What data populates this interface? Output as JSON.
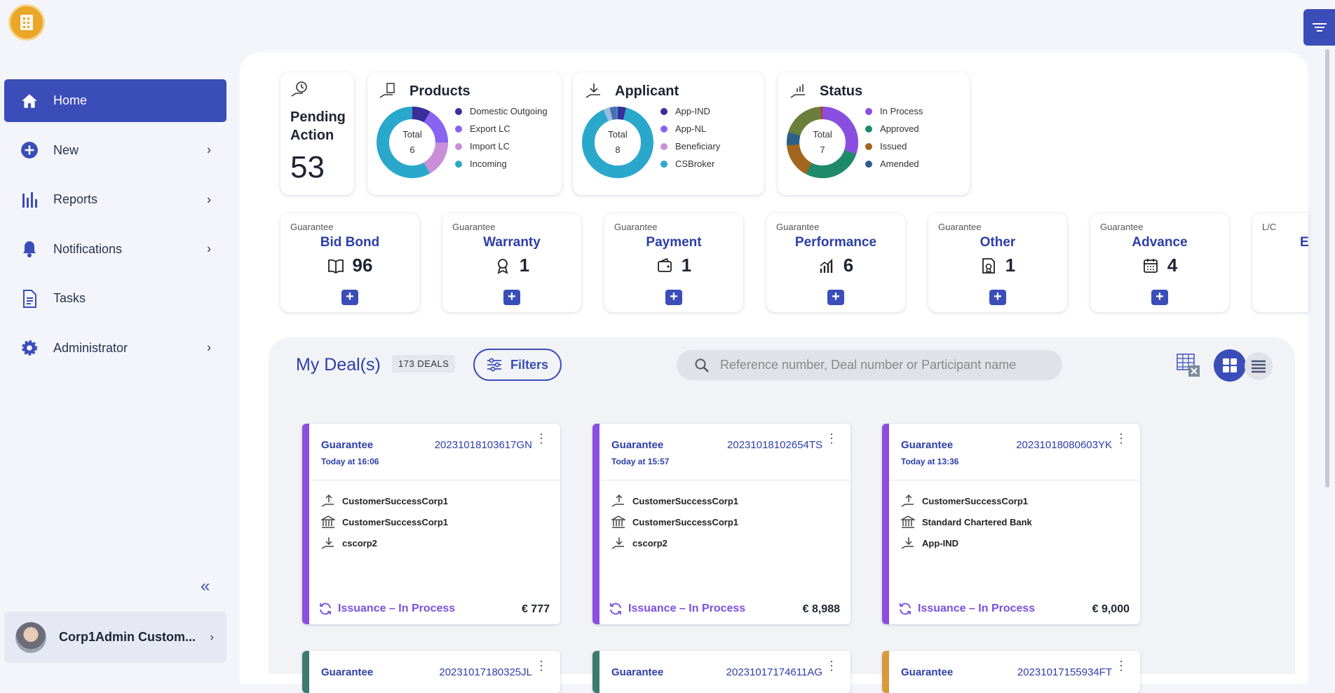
{
  "sidebar": {
    "items": [
      {
        "label": "Home",
        "icon": "home-icon",
        "active": true
      },
      {
        "label": "New",
        "icon": "plus-circle-icon"
      },
      {
        "label": "Reports",
        "icon": "bar-chart-icon"
      },
      {
        "label": "Notifications",
        "icon": "bell-icon"
      },
      {
        "label": "Tasks",
        "icon": "document-icon"
      },
      {
        "label": "Administrator",
        "icon": "gear-icon"
      }
    ],
    "collapse_label": "«",
    "user": {
      "name": "Corp1Admin Custom..."
    }
  },
  "pending": {
    "label_line1": "Pending",
    "label_line2": "Action",
    "count": "53"
  },
  "summary": {
    "products": {
      "title": "Products",
      "total_label": "Total",
      "total": "6",
      "legend": [
        {
          "label": "Domestic Outgoing",
          "color": "#3a2e9a"
        },
        {
          "label": "Export LC",
          "color": "#8a63f0"
        },
        {
          "label": "Import LC",
          "color": "#c98fd8"
        },
        {
          "label": "Incoming",
          "color": "#2aa8cc"
        }
      ]
    },
    "applicant": {
      "title": "Applicant",
      "total_label": "Total",
      "total": "8",
      "legend": [
        {
          "label": "App-IND",
          "color": "#3a2e9a"
        },
        {
          "label": "App-NL",
          "color": "#8a63f0"
        },
        {
          "label": "Beneficiary",
          "color": "#c98fd8"
        },
        {
          "label": "CSBroker",
          "color": "#2aa8cc"
        }
      ]
    },
    "status": {
      "title": "Status",
      "total_label": "Total",
      "total": "7",
      "legend": [
        {
          "label": "In Process",
          "color": "#8a4fe0"
        },
        {
          "label": "Approved",
          "color": "#1e8a6a"
        },
        {
          "label": "Issued",
          "color": "#a2661c"
        },
        {
          "label": "Amended",
          "color": "#2e5f8a"
        }
      ]
    }
  },
  "products": [
    {
      "category": "Guarantee",
      "name": "Bid Bond",
      "count": "96",
      "icon": "book-icon"
    },
    {
      "category": "Guarantee",
      "name": "Warranty",
      "count": "1",
      "icon": "award-icon"
    },
    {
      "category": "Guarantee",
      "name": "Payment",
      "count": "1",
      "icon": "wallet-icon"
    },
    {
      "category": "Guarantee",
      "name": "Performance",
      "count": "6",
      "icon": "growth-chart-icon"
    },
    {
      "category": "Guarantee",
      "name": "Other",
      "count": "1",
      "icon": "certificate-icon"
    },
    {
      "category": "Guarantee",
      "name": "Advance",
      "count": "4",
      "icon": "calendar-icon"
    },
    {
      "category": "L/C",
      "name": "E",
      "count": "",
      "icon": "hand-icon"
    }
  ],
  "plus_label": "+",
  "deals": {
    "title": "My Deal(s)",
    "count_label": "173 DEALS",
    "filters_label": "Filters",
    "search_placeholder": "Reference number, Deal number or Participant name",
    "items": [
      {
        "type": "Guarantee",
        "ref": "20231018103617GN",
        "time": "Today at 16:06",
        "parties": [
          "CustomerSuccessCorp1",
          "CustomerSuccessCorp1",
          "cscorp2"
        ],
        "status": "Issuance – In Process",
        "amount": "€ 777",
        "bar_color": "#8a4fe0"
      },
      {
        "type": "Guarantee",
        "ref": "20231018102654TS",
        "time": "Today at 15:57",
        "parties": [
          "CustomerSuccessCorp1",
          "CustomerSuccessCorp1",
          "cscorp2"
        ],
        "status": "Issuance – In Process",
        "amount": "€ 8,988",
        "bar_color": "#8a4fe0"
      },
      {
        "type": "Guarantee",
        "ref": "20231018080603YK",
        "time": "Today at 13:36",
        "parties": [
          "CustomerSuccessCorp1",
          "Standard Chartered Bank",
          "App-IND"
        ],
        "status": "Issuance – In Process",
        "amount": "€ 9,000",
        "bar_color": "#8a4fe0"
      },
      {
        "type": "Guarantee",
        "ref": "20231017180325JL",
        "bar_color": "#3d7a6e"
      },
      {
        "type": "Guarantee",
        "ref": "20231017174611AG",
        "bar_color": "#3d7a6e"
      },
      {
        "type": "Guarantee",
        "ref": "20231017155934FT",
        "bar_color": "#d69a3a"
      }
    ]
  },
  "colors": {
    "accent": "#3a4db8",
    "link": "#2c3ea8",
    "status": "#7a4fe0"
  }
}
